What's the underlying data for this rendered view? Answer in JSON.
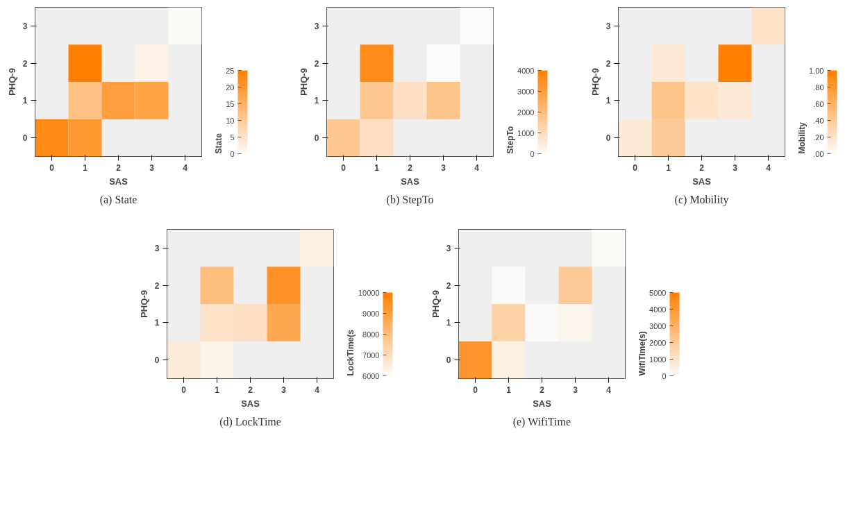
{
  "chart_data": [
    {
      "type": "heatmap",
      "title": "(a) State",
      "xlabel": "SAS",
      "ylabel": "PHQ-9",
      "clabel": "State",
      "categories": [
        "0",
        "1",
        "2",
        "3",
        "4"
      ],
      "y_categories": [
        "3",
        "2",
        "1",
        "0"
      ],
      "cells": [
        [
          null,
          null,
          null,
          null,
          0.5
        ],
        [
          null,
          25,
          null,
          2,
          null
        ],
        [
          null,
          12,
          19,
          18,
          null
        ],
        [
          23,
          20,
          null,
          null,
          null
        ]
      ],
      "clim": [
        0,
        25
      ],
      "cticks": [
        0,
        5,
        10,
        15,
        20,
        25
      ]
    },
    {
      "type": "heatmap",
      "title": "(b) StepTo",
      "xlabel": "SAS",
      "ylabel": "PHQ-9",
      "clabel": "StepTo",
      "categories": [
        "0",
        "1",
        "2",
        "3",
        "4"
      ],
      "y_categories": [
        "3",
        "2",
        "1",
        "0"
      ],
      "cells": [
        [
          null,
          null,
          null,
          null,
          50
        ],
        [
          null,
          3600,
          null,
          50,
          null
        ],
        [
          null,
          1700,
          900,
          1800,
          null
        ],
        [
          1700,
          900,
          null,
          null,
          null
        ]
      ],
      "clim": [
        0,
        4000
      ],
      "cticks": [
        0,
        1000,
        2000,
        3000,
        4000
      ]
    },
    {
      "type": "heatmap",
      "title": "(c) Mobility",
      "xlabel": "SAS",
      "ylabel": "PHQ-9",
      "clabel": "Mobility",
      "categories": [
        "0",
        "1",
        "2",
        "3",
        "4"
      ],
      "y_categories": [
        "3",
        "2",
        "1",
        "0"
      ],
      "cells": [
        [
          null,
          null,
          null,
          null,
          0.2
        ],
        [
          null,
          0.15,
          null,
          1.0,
          null
        ],
        [
          null,
          0.45,
          0.2,
          0.15,
          null
        ],
        [
          0.15,
          0.4,
          null,
          null,
          null
        ]
      ],
      "clim": [
        0,
        1
      ],
      "cticks": [
        {
          "value": 0,
          "label": ".00"
        },
        {
          "value": 0.2,
          "label": ".20"
        },
        {
          "value": 0.4,
          "label": ".40"
        },
        {
          "value": 0.6,
          "label": ".60"
        },
        {
          "value": 0.8,
          "label": ".80"
        },
        {
          "value": 1,
          "label": "1.00"
        }
      ]
    },
    {
      "type": "heatmap",
      "title": "(d) LockTime",
      "xlabel": "SAS",
      "ylabel": "PHQ-9",
      "clabel": "LockTime(s",
      "categories": [
        "0",
        "1",
        "2",
        "3",
        "4"
      ],
      "y_categories": [
        "3",
        "2",
        "1",
        "0"
      ],
      "cells": [
        [
          null,
          null,
          null,
          null,
          6400
        ],
        [
          null,
          8000,
          null,
          9400,
          null
        ],
        [
          null,
          6800,
          6900,
          8700,
          null
        ],
        [
          6500,
          6300,
          null,
          null,
          null
        ]
      ],
      "clim": [
        6000,
        10000
      ],
      "cticks": [
        6000,
        7000,
        8000,
        9000,
        10000
      ]
    },
    {
      "type": "heatmap",
      "title": "(e) WifiTime",
      "xlabel": "SAS",
      "ylabel": "PHQ-9",
      "clabel": "WifiTime(s)",
      "categories": [
        "0",
        "1",
        "2",
        "3",
        "4"
      ],
      "y_categories": [
        "3",
        "2",
        "1",
        "0"
      ],
      "cells": [
        [
          null,
          null,
          null,
          null,
          100
        ],
        [
          null,
          80,
          null,
          2000,
          null
        ],
        [
          null,
          1700,
          80,
          300,
          null
        ],
        [
          4100,
          500,
          null,
          null,
          null
        ]
      ],
      "clim": [
        0,
        5000
      ],
      "cticks": [
        0,
        1000,
        2000,
        3000,
        4000,
        5000
      ]
    }
  ]
}
